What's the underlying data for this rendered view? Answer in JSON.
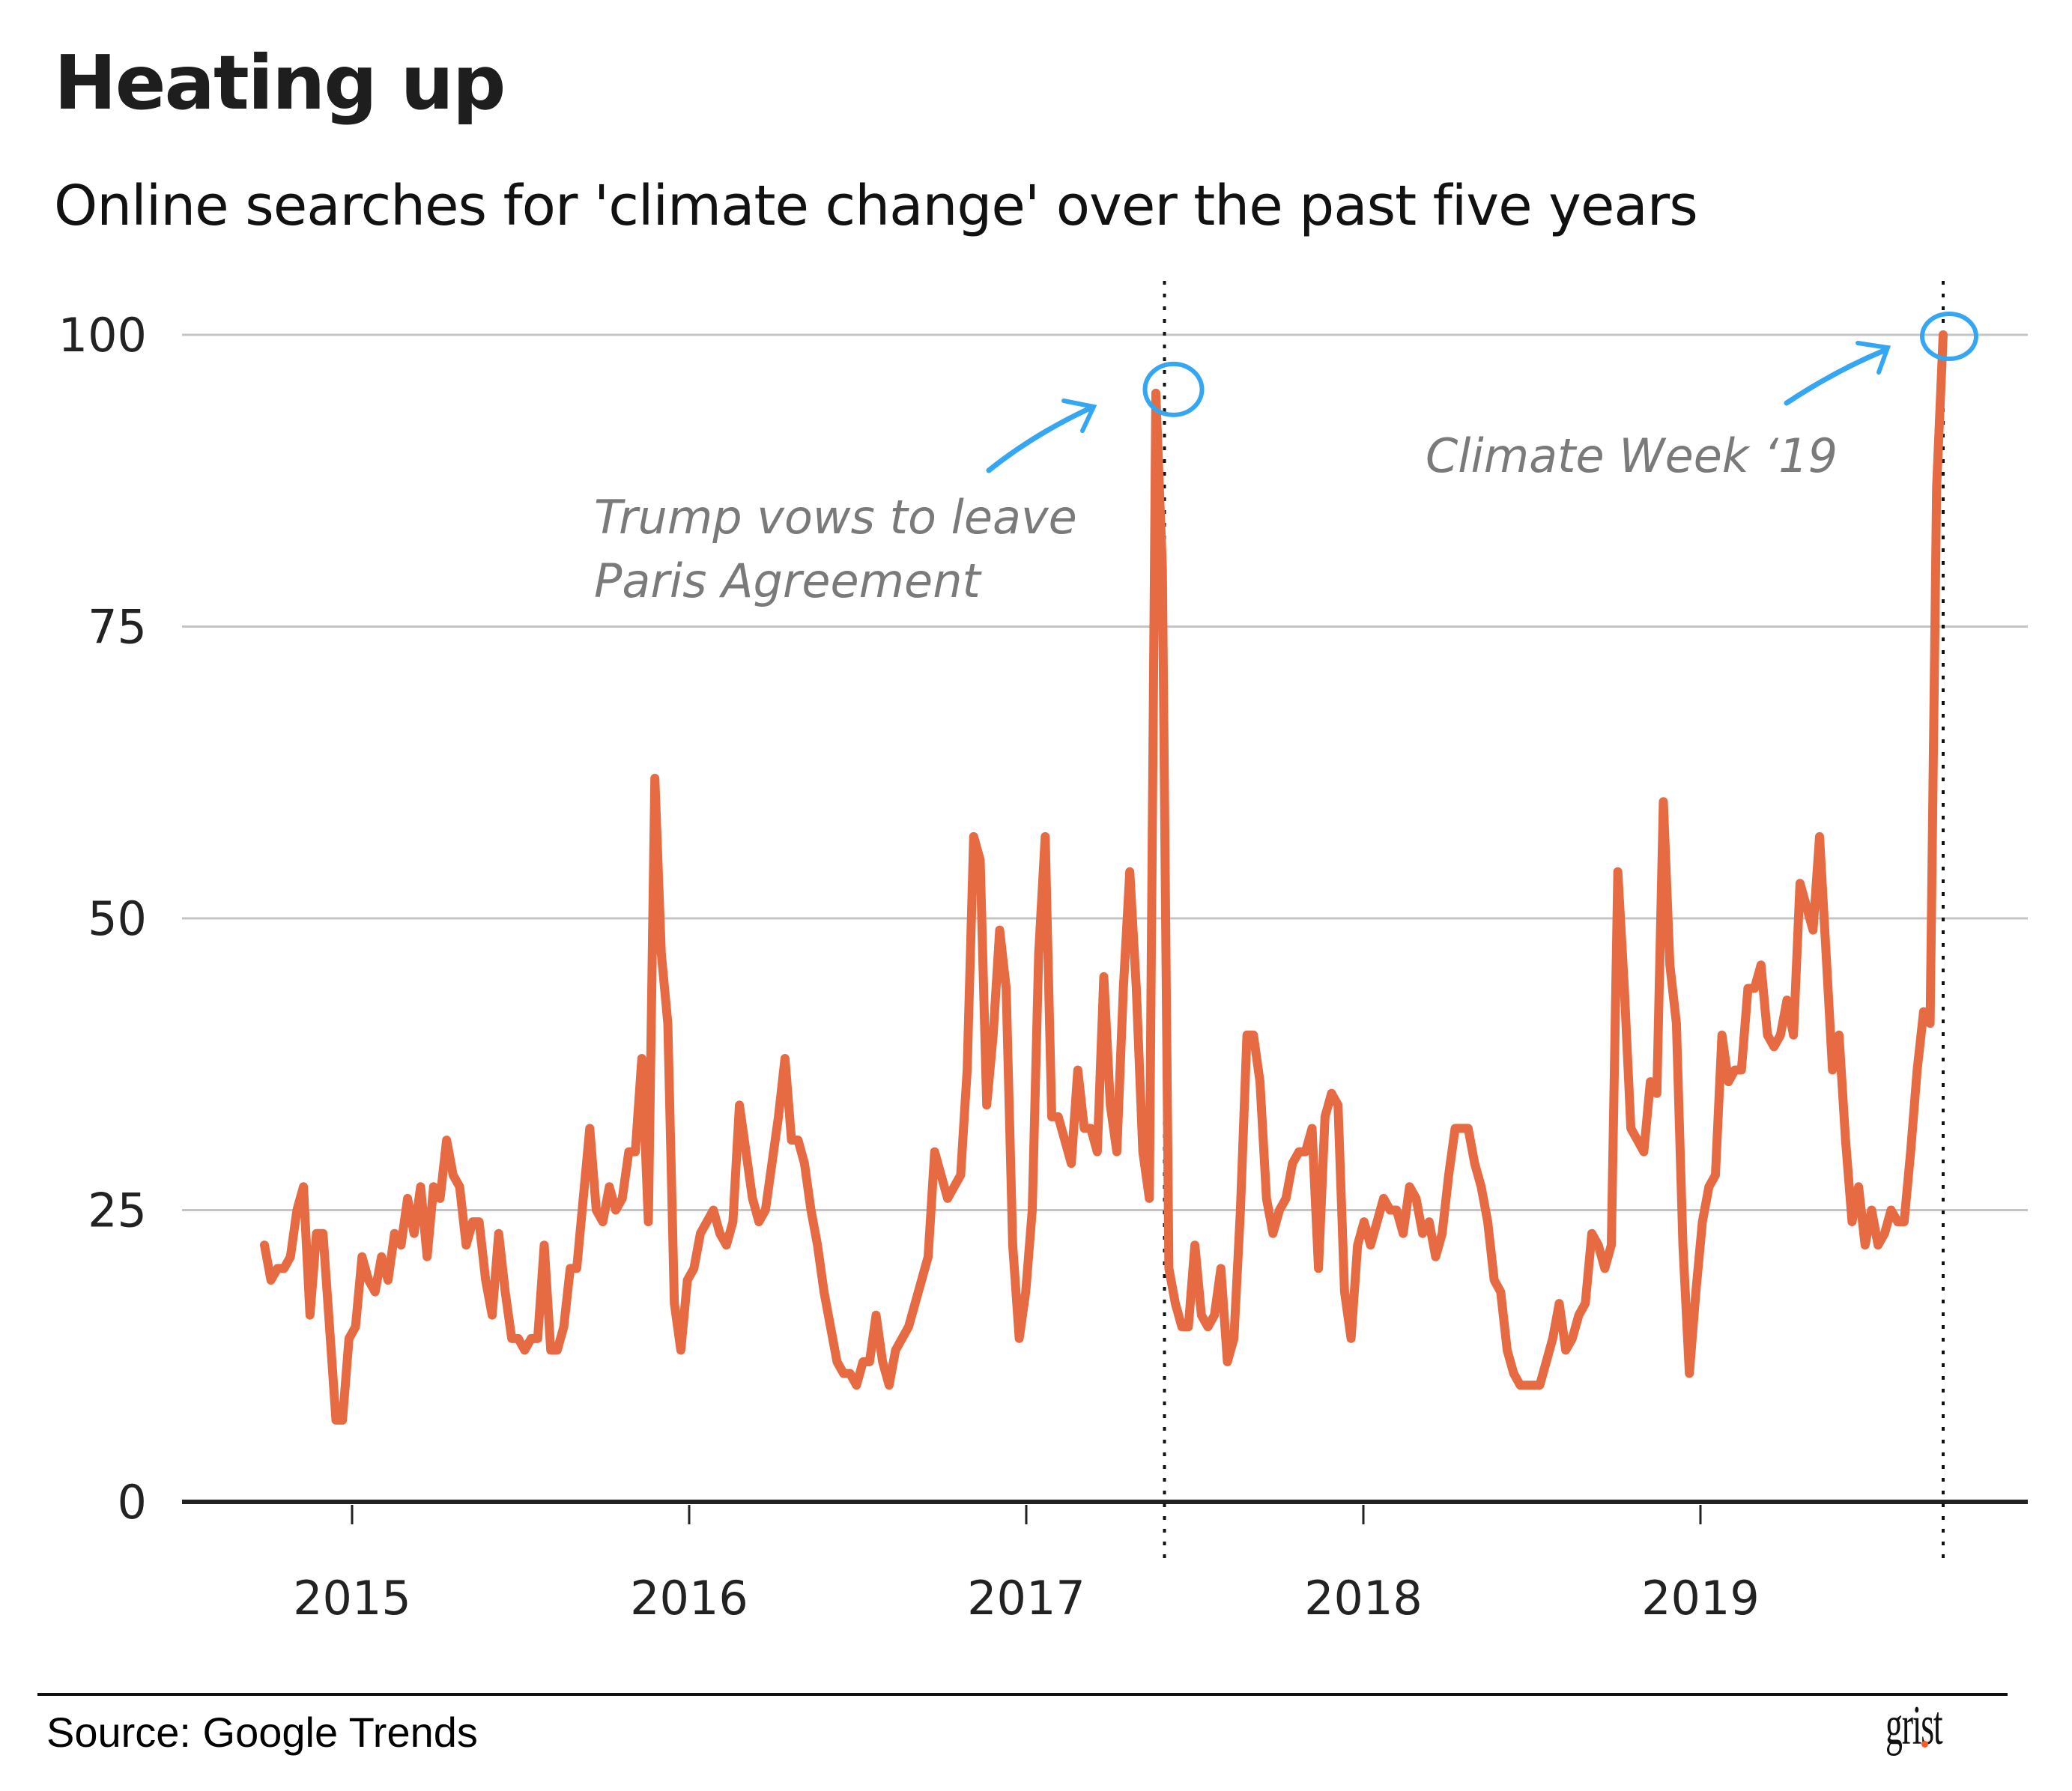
{
  "header": {
    "title": "Heating up",
    "subtitle": "Online searches for 'climate change' over the past five years"
  },
  "footer": {
    "source": "Source: Google Trends",
    "logo": "grist"
  },
  "colors": {
    "line": "#e66a42",
    "annotation_marker": "#35a7f2",
    "gridline": "#c4c4c4",
    "axis": "#222222",
    "annotation_text": "#7a7a7a",
    "logo_dot": "#ff5a1f"
  },
  "chart_data": {
    "type": "line",
    "title": "Heating up",
    "subtitle": "Online searches for 'climate change' over the past five years",
    "xlabel": "",
    "ylabel": "",
    "x_start": 2014.74,
    "x_end": 2019.72,
    "xlim": [
      2014.5,
      2019.99
    ],
    "ylim": [
      0,
      100
    ],
    "grid": true,
    "y_ticks": [
      0,
      25,
      50,
      75,
      100
    ],
    "x_ticks": [
      {
        "value": 2015,
        "label": "2015"
      },
      {
        "value": 2016,
        "label": "2016"
      },
      {
        "value": 2017,
        "label": "2017"
      },
      {
        "value": 2018,
        "label": "2018"
      },
      {
        "value": 2019,
        "label": "2019"
      }
    ],
    "series": [
      {
        "name": "climate change",
        "values": [
          22,
          19,
          20,
          20,
          21,
          25,
          27,
          16,
          23,
          23,
          15,
          7,
          7,
          14,
          15,
          21,
          19,
          18,
          21,
          19,
          23,
          22,
          26,
          23,
          27,
          21,
          27,
          26,
          31,
          28,
          27,
          22,
          24,
          24,
          19,
          16,
          23,
          18,
          14,
          14,
          13,
          14,
          14,
          22,
          13,
          13,
          15,
          20,
          20,
          26,
          32,
          25,
          24,
          27,
          25,
          26,
          30,
          30,
          38,
          24,
          62,
          47,
          41,
          17,
          13,
          19,
          20,
          23,
          24,
          25,
          23,
          22,
          24,
          34,
          30,
          26,
          24,
          25,
          29,
          33,
          38,
          31,
          31,
          29,
          25,
          22,
          18,
          15,
          12,
          11,
          11,
          10,
          12,
          12,
          16,
          12,
          10,
          13,
          14,
          15,
          17,
          19,
          21,
          30,
          28,
          26,
          27,
          28,
          37,
          57,
          55,
          34,
          40,
          49,
          44,
          22,
          14,
          18,
          25,
          47,
          57,
          33,
          33,
          31,
          29,
          37,
          32,
          32,
          30,
          45,
          34,
          30,
          44,
          54,
          44,
          30,
          26,
          95,
          80,
          20,
          17,
          15,
          15,
          22,
          16,
          15,
          16,
          20,
          12,
          14,
          25,
          40,
          40,
          36,
          26,
          23,
          25,
          26,
          29,
          30,
          30,
          32,
          20,
          33,
          35,
          34,
          18,
          14,
          22,
          24,
          22,
          24,
          26,
          25,
          25,
          23,
          27,
          26,
          23,
          24,
          21,
          23,
          28,
          32,
          32,
          32,
          29,
          27,
          24,
          19,
          18,
          13,
          11,
          10,
          10,
          10,
          10,
          12,
          14,
          17,
          13,
          14,
          16,
          17,
          23,
          22,
          20,
          22,
          54,
          44,
          32,
          31,
          30,
          36,
          35,
          60,
          46,
          41,
          22,
          11,
          18,
          24,
          27,
          28,
          40,
          36,
          37,
          37,
          44,
          44,
          46,
          40,
          39,
          40,
          43,
          40,
          53,
          51,
          49,
          57,
          47,
          37,
          40,
          31,
          24,
          27,
          22,
          25,
          22,
          23,
          25,
          24,
          24,
          30,
          37,
          42,
          41,
          87,
          100
        ]
      }
    ],
    "reference_lines": [
      {
        "x": 2017.41,
        "style": "dotted"
      },
      {
        "x": 2019.72,
        "style": "dotted"
      }
    ],
    "annotations": [
      {
        "lines": [
          "Trump vows to leave",
          "Paris Agreement"
        ],
        "target_x": 2017.41,
        "target_y": 95
      },
      {
        "lines": [
          "Climate Week ‘19"
        ],
        "target_x": 2019.72,
        "target_y": 100
      }
    ]
  }
}
